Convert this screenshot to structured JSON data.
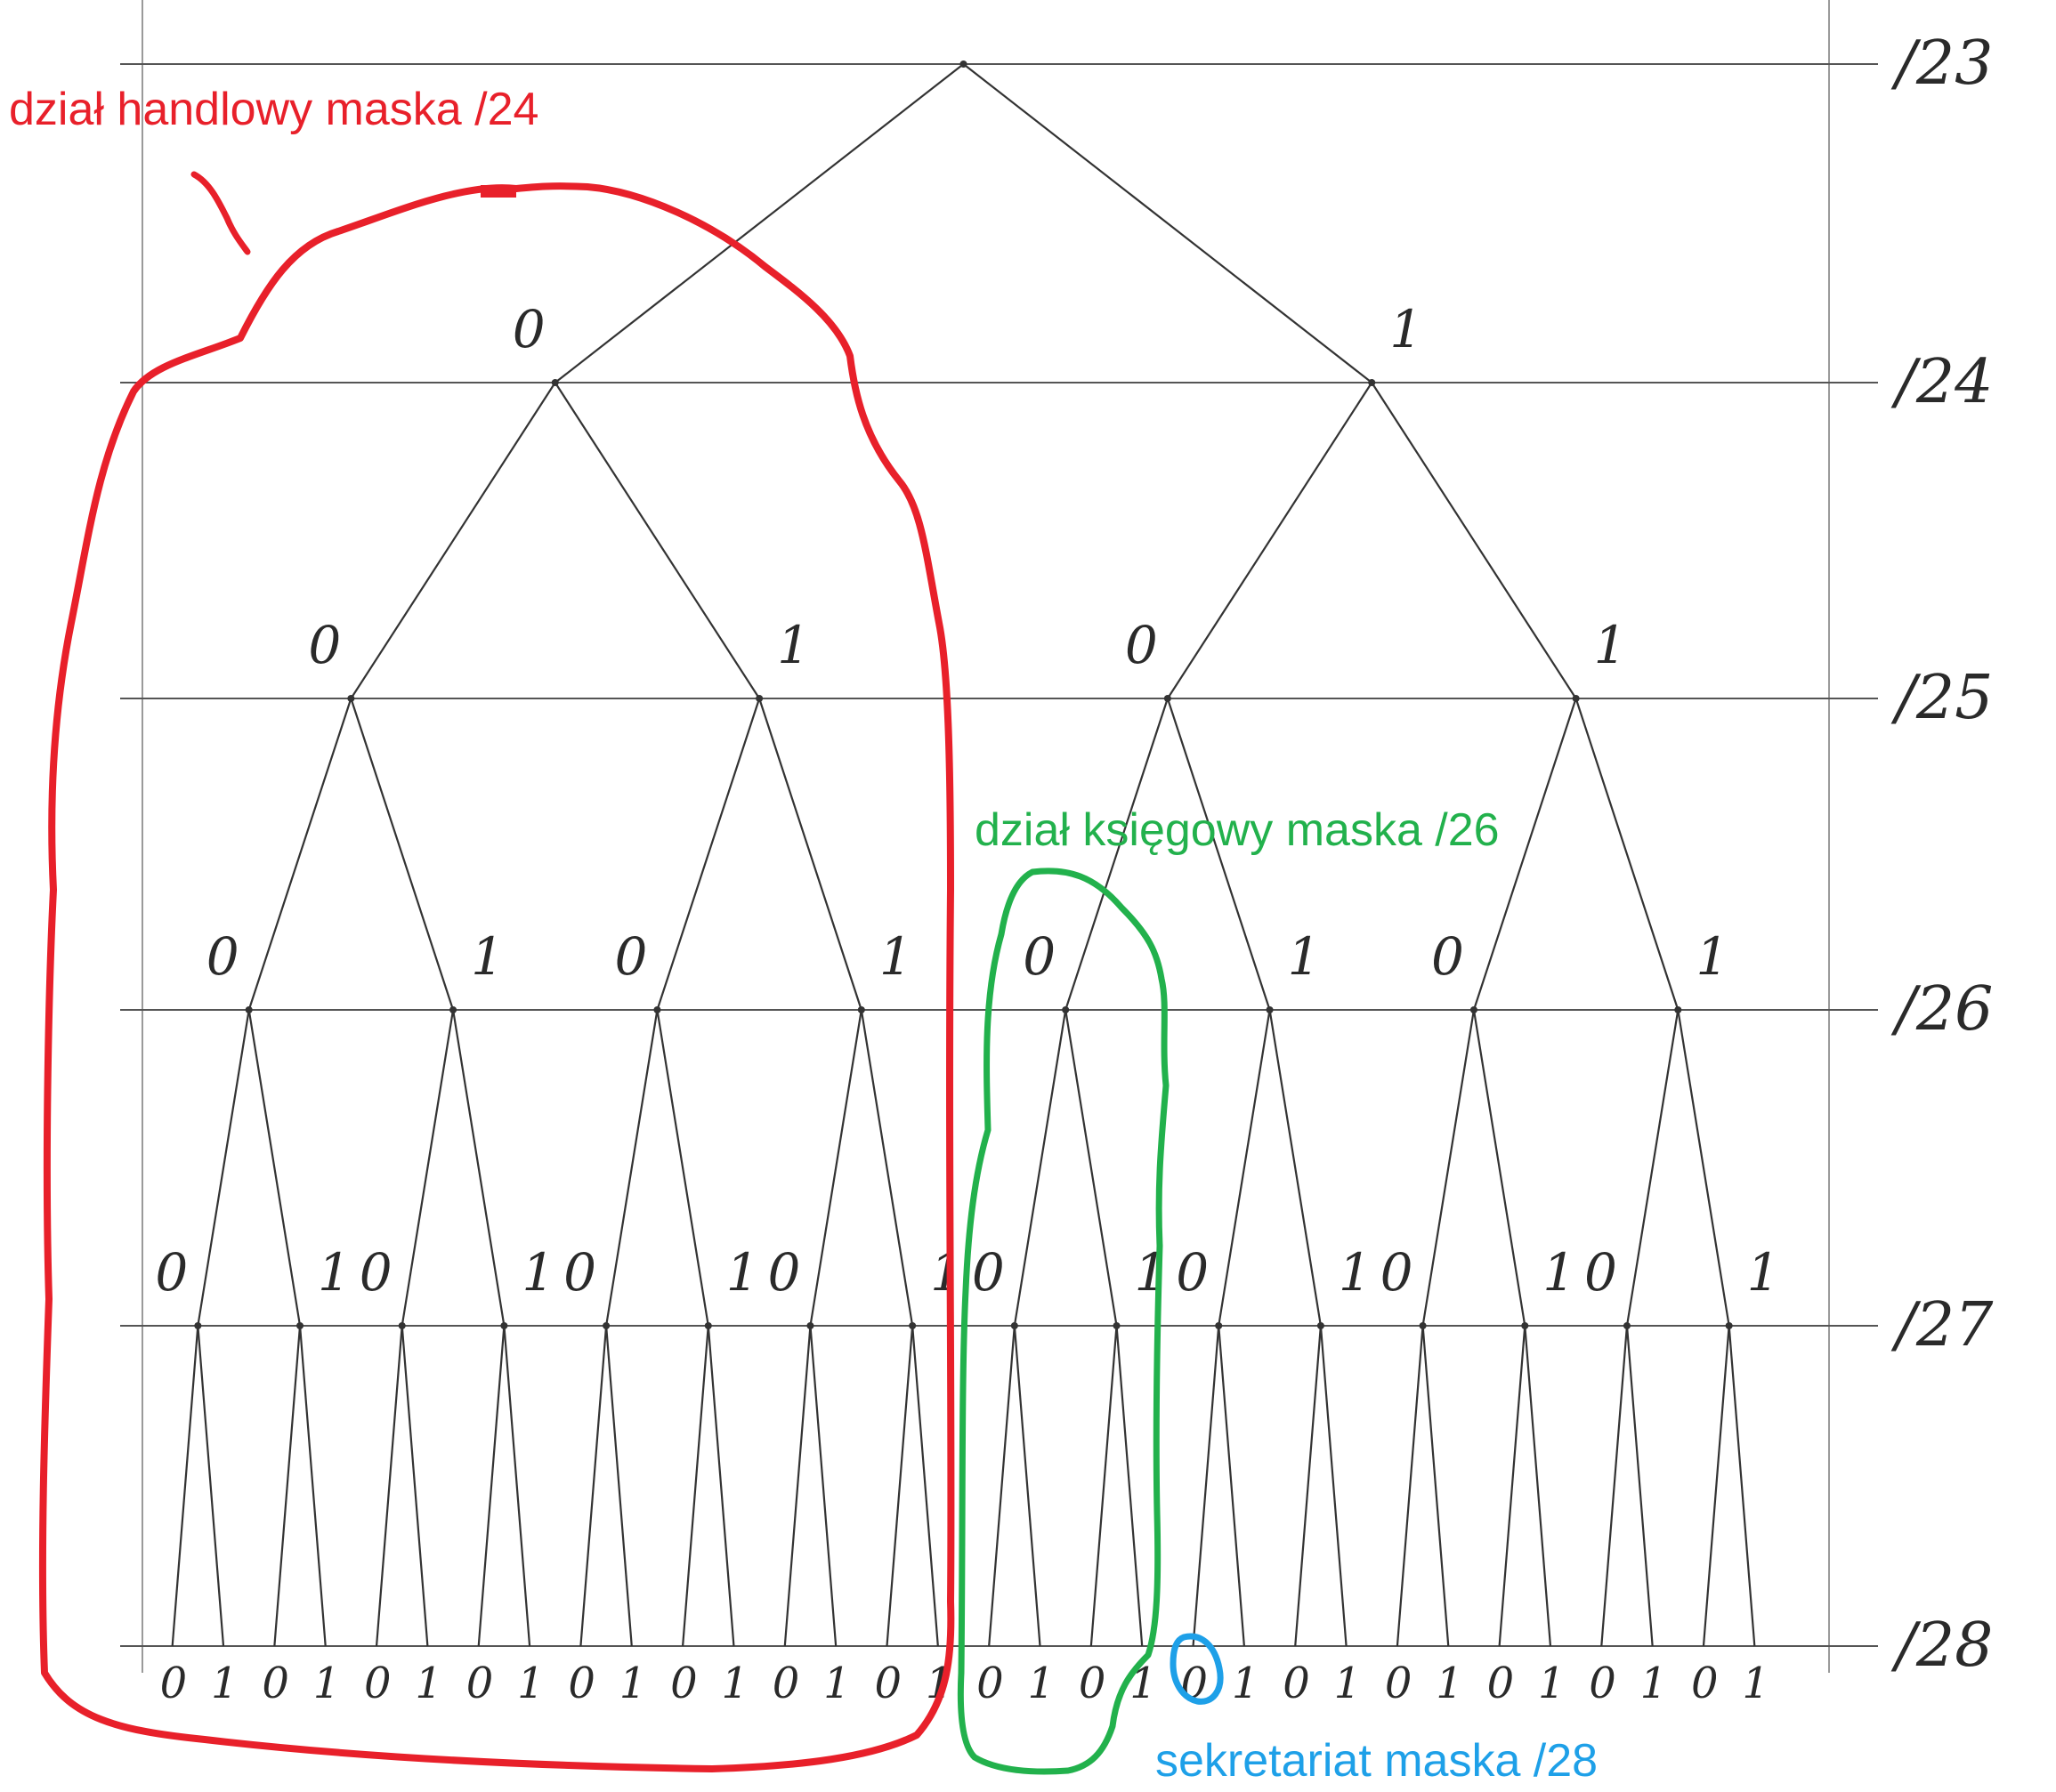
{
  "levels": [
    "/23",
    "/24",
    "/25",
    "/26",
    "/27",
    "/28"
  ],
  "branch_labels": {
    "left": "0",
    "right": "1"
  },
  "annotations": [
    {
      "id": "handlowy",
      "text": "dział handlowy maska /24",
      "color": "#e8202a"
    },
    {
      "id": "ksiegowy",
      "text": "dział księgowy maska /26",
      "color": "#22b14c"
    },
    {
      "id": "sekretariat",
      "text": "sekretariat maska /28",
      "color": "#1ea0e8"
    }
  ]
}
